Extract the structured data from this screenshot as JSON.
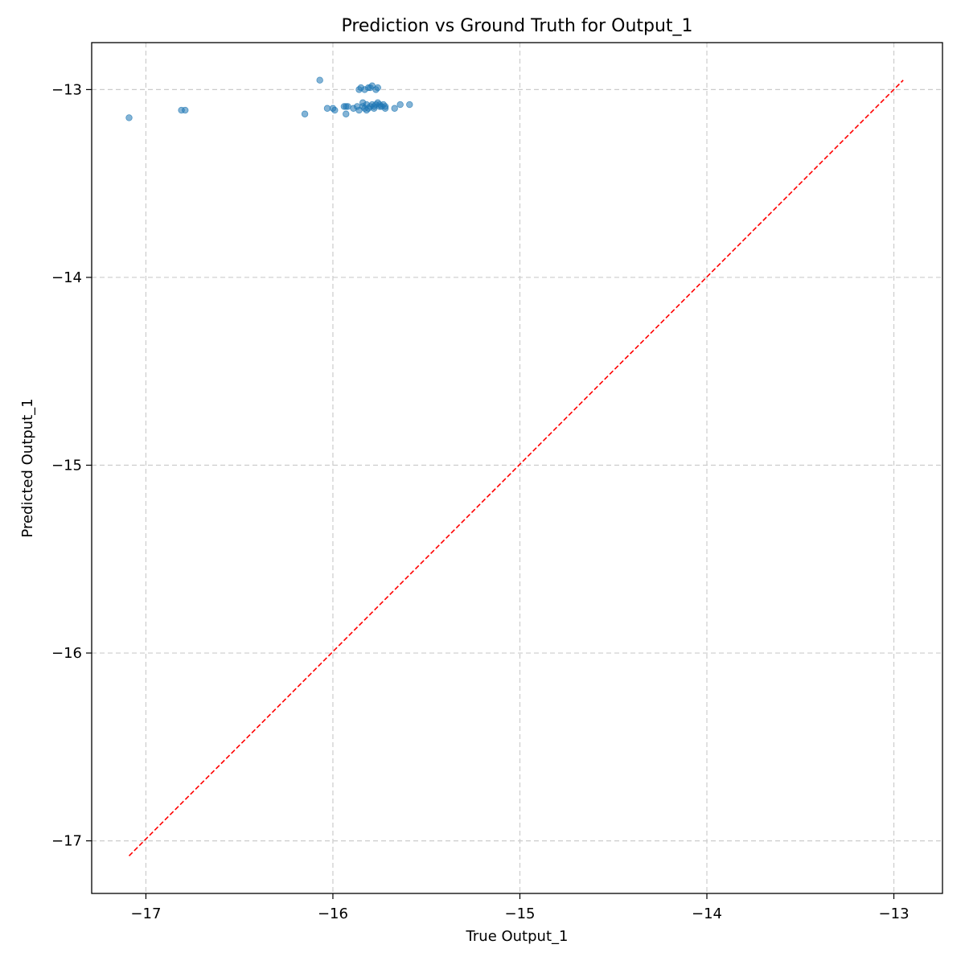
{
  "chart_data": {
    "type": "scatter",
    "title": "Prediction vs Ground Truth for Output_1",
    "xlabel": "True Output_1",
    "ylabel": "Predicted Output_1",
    "xlim": [
      -17.29,
      -12.74
    ],
    "ylim": [
      -17.28,
      -12.75
    ],
    "xticks": [
      -17,
      -16,
      -15,
      -14,
      -13
    ],
    "yticks": [
      -17,
      -16,
      -15,
      -14,
      -13
    ],
    "xtick_labels": [
      "−17",
      "−16",
      "−15",
      "−14",
      "−13"
    ],
    "ytick_labels": [
      "−17",
      "−16",
      "−15",
      "−14",
      "−13"
    ],
    "grid": true,
    "colors": {
      "points": "#1f77b4",
      "reference_line": "#ff0000",
      "grid": "#cccccc"
    },
    "reference_line": {
      "x": [
        -17.09,
        -12.95
      ],
      "y": [
        -17.08,
        -12.95
      ]
    },
    "points": [
      {
        "x": -17.09,
        "y": -13.15
      },
      {
        "x": -16.81,
        "y": -13.11
      },
      {
        "x": -16.79,
        "y": -13.11
      },
      {
        "x": -16.15,
        "y": -13.13
      },
      {
        "x": -16.07,
        "y": -12.95
      },
      {
        "x": -16.03,
        "y": -13.1
      },
      {
        "x": -16.0,
        "y": -13.1
      },
      {
        "x": -15.99,
        "y": -13.11
      },
      {
        "x": -15.94,
        "y": -13.09
      },
      {
        "x": -15.93,
        "y": -13.09
      },
      {
        "x": -15.93,
        "y": -13.13
      },
      {
        "x": -15.92,
        "y": -13.09
      },
      {
        "x": -15.89,
        "y": -13.1
      },
      {
        "x": -15.87,
        "y": -13.09
      },
      {
        "x": -15.86,
        "y": -13.11
      },
      {
        "x": -15.86,
        "y": -13.0
      },
      {
        "x": -15.85,
        "y": -12.99
      },
      {
        "x": -15.84,
        "y": -13.07
      },
      {
        "x": -15.84,
        "y": -13.09
      },
      {
        "x": -15.83,
        "y": -13.1
      },
      {
        "x": -15.83,
        "y": -13.0
      },
      {
        "x": -15.82,
        "y": -13.11
      },
      {
        "x": -15.82,
        "y": -13.08
      },
      {
        "x": -15.81,
        "y": -12.99
      },
      {
        "x": -15.81,
        "y": -13.1
      },
      {
        "x": -15.8,
        "y": -13.09
      },
      {
        "x": -15.8,
        "y": -12.99
      },
      {
        "x": -15.79,
        "y": -13.08
      },
      {
        "x": -15.79,
        "y": -12.98
      },
      {
        "x": -15.78,
        "y": -13.1
      },
      {
        "x": -15.78,
        "y": -13.09
      },
      {
        "x": -15.77,
        "y": -13.0
      },
      {
        "x": -15.77,
        "y": -13.08
      },
      {
        "x": -15.76,
        "y": -13.07
      },
      {
        "x": -15.76,
        "y": -12.99
      },
      {
        "x": -15.75,
        "y": -13.09
      },
      {
        "x": -15.75,
        "y": -13.08
      },
      {
        "x": -15.74,
        "y": -13.09
      },
      {
        "x": -15.73,
        "y": -13.08
      },
      {
        "x": -15.72,
        "y": -13.1
      },
      {
        "x": -15.72,
        "y": -13.09
      },
      {
        "x": -15.67,
        "y": -13.1
      },
      {
        "x": -15.64,
        "y": -13.08
      },
      {
        "x": -15.59,
        "y": -13.08
      }
    ]
  }
}
